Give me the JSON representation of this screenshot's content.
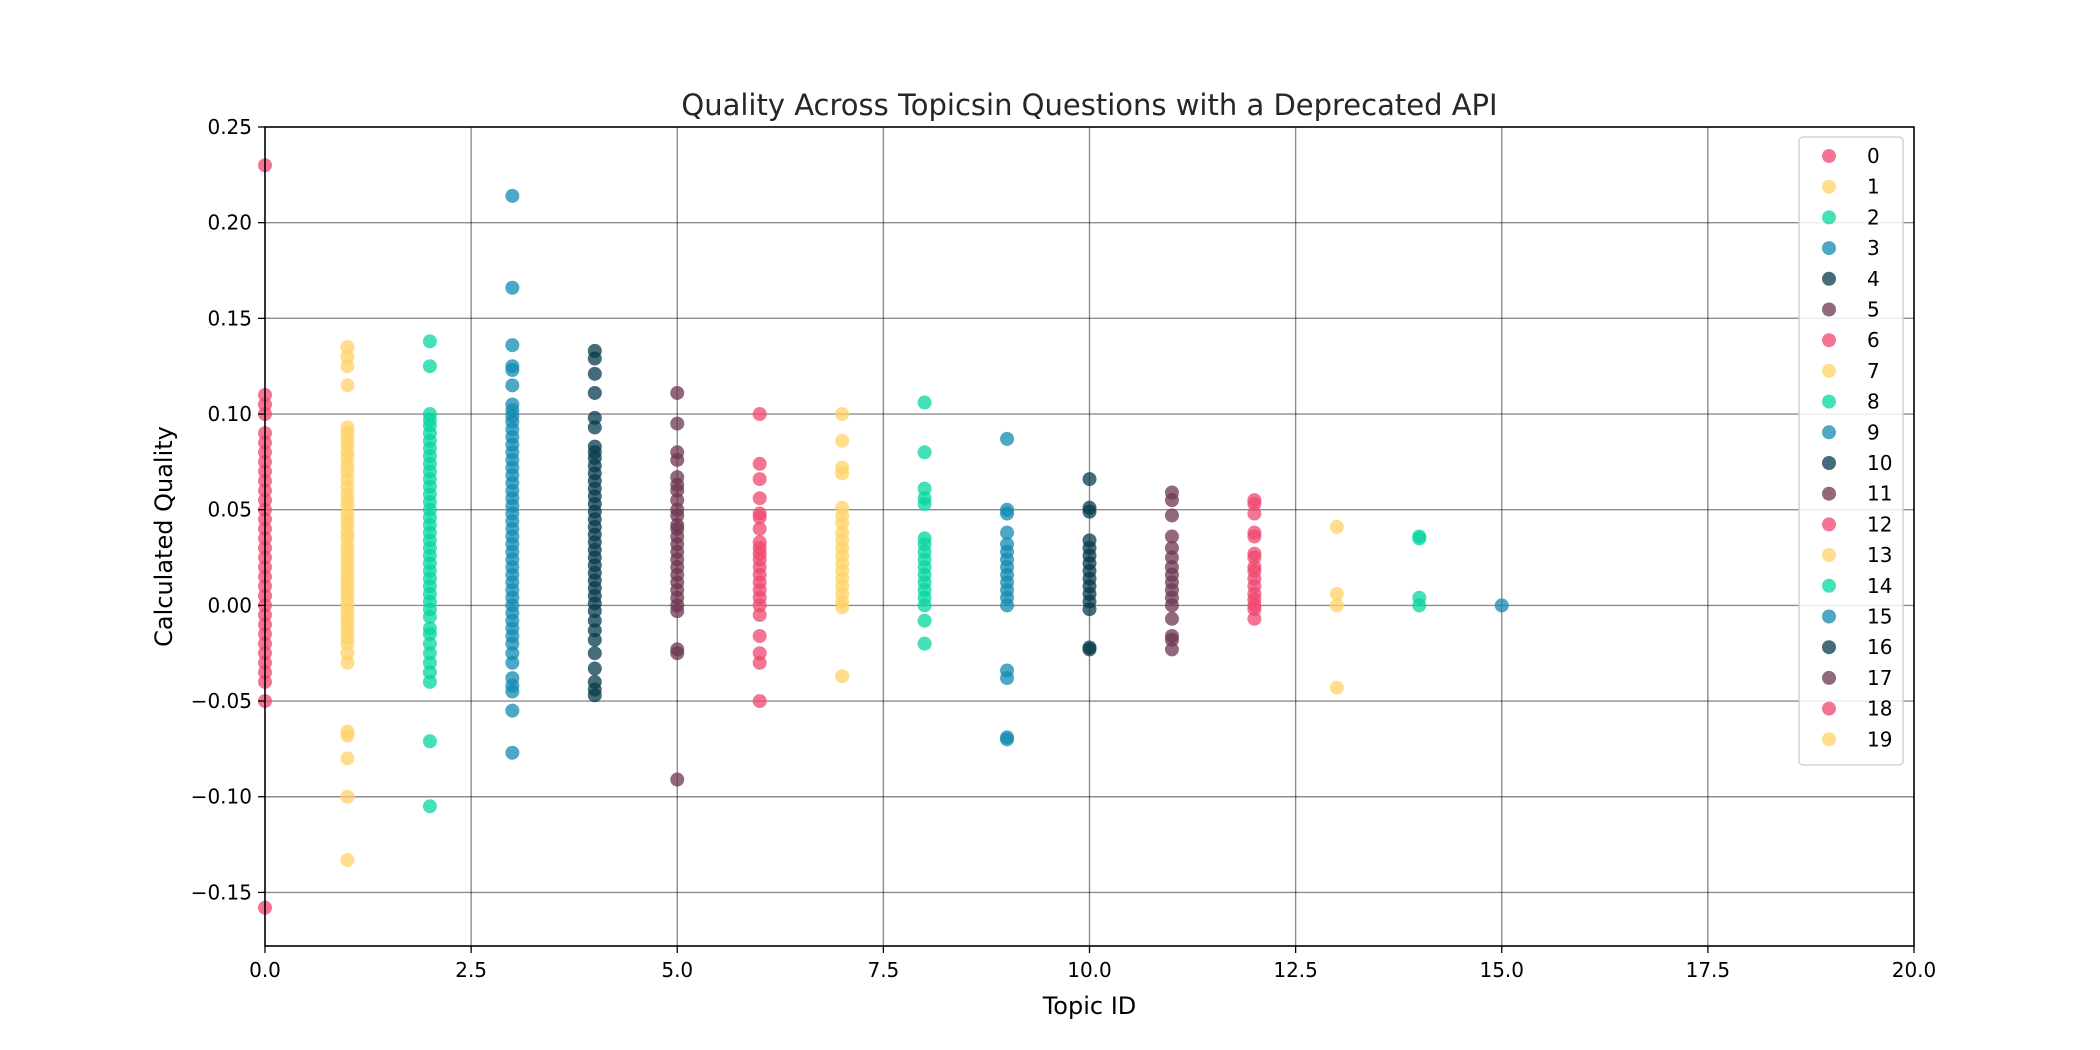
{
  "chart_data": {
    "type": "scatter",
    "title": "Quality Across Topicsin Questions with a Deprecated API",
    "xlabel": "Topic ID",
    "ylabel": "Calculated Quality",
    "xlim": [
      0,
      20
    ],
    "ylim": [
      -0.178,
      0.25
    ],
    "xticks": [
      0,
      2.5,
      5,
      7.5,
      10,
      12.5,
      15,
      17.5,
      20
    ],
    "xtick_labels": [
      "0.0",
      "2.5",
      "5.0",
      "7.5",
      "10.0",
      "12.5",
      "15.0",
      "17.5",
      "20.0"
    ],
    "yticks": [
      -0.15,
      -0.1,
      -0.05,
      0,
      0.05,
      0.1,
      0.15,
      0.2,
      0.25
    ],
    "ytick_labels": [
      "−0.15",
      "−0.10",
      "−0.05",
      "0.00",
      "0.05",
      "0.10",
      "0.15",
      "0.20",
      "0.25"
    ],
    "grid": true,
    "legend_position": "top-right",
    "colors": [
      "#ef476f",
      "#ffd166",
      "#06d6a0",
      "#118ab2",
      "#073b4c",
      "#6d3552"
    ],
    "series": [
      {
        "name": "0",
        "x": 0,
        "y": [
          0.23,
          0.11,
          0.105,
          0.1,
          0.09,
          0.085,
          0.08,
          0.075,
          0.07,
          0.065,
          0.06,
          0.055,
          0.05,
          0.045,
          0.04,
          0.035,
          0.03,
          0.025,
          0.02,
          0.015,
          0.01,
          0.005,
          0.0,
          -0.005,
          -0.01,
          -0.015,
          -0.02,
          -0.025,
          -0.03,
          -0.035,
          -0.04,
          -0.05,
          -0.158
        ]
      },
      {
        "name": "1",
        "x": 1,
        "y": [
          0.135,
          0.13,
          0.125,
          0.115,
          0.093,
          0.09,
          0.087,
          0.084,
          0.08,
          0.077,
          0.073,
          0.07,
          0.066,
          0.062,
          0.058,
          0.055,
          0.052,
          0.048,
          0.045,
          0.042,
          0.038,
          0.035,
          0.031,
          0.028,
          0.025,
          0.022,
          0.019,
          0.016,
          0.013,
          0.01,
          0.007,
          0.004,
          0.001,
          -0.002,
          -0.005,
          -0.008,
          -0.011,
          -0.014,
          -0.017,
          -0.02,
          -0.025,
          -0.03,
          -0.066,
          -0.068,
          -0.08,
          -0.1,
          -0.133
        ]
      },
      {
        "name": "2",
        "x": 2,
        "y": [
          0.138,
          0.125,
          0.1,
          0.097,
          0.094,
          0.09,
          0.086,
          0.082,
          0.078,
          0.074,
          0.07,
          0.066,
          0.062,
          0.058,
          0.054,
          0.05,
          0.046,
          0.042,
          0.038,
          0.034,
          0.03,
          0.026,
          0.022,
          0.018,
          0.014,
          0.01,
          0.006,
          0.002,
          -0.002,
          -0.006,
          -0.012,
          -0.015,
          -0.02,
          -0.025,
          -0.03,
          -0.035,
          -0.04,
          -0.071,
          -0.105
        ]
      },
      {
        "name": "3",
        "x": 3,
        "y": [
          0.214,
          0.166,
          0.136,
          0.125,
          0.123,
          0.115,
          0.105,
          0.102,
          0.099,
          0.096,
          0.092,
          0.088,
          0.084,
          0.08,
          0.076,
          0.072,
          0.068,
          0.064,
          0.06,
          0.056,
          0.052,
          0.048,
          0.044,
          0.04,
          0.036,
          0.032,
          0.028,
          0.024,
          0.02,
          0.016,
          0.012,
          0.008,
          0.004,
          0.0,
          -0.004,
          -0.008,
          -0.012,
          -0.016,
          -0.02,
          -0.025,
          -0.03,
          -0.038,
          -0.042,
          -0.045,
          -0.055,
          -0.077
        ]
      },
      {
        "name": "4",
        "x": 4,
        "y": [
          0.133,
          0.129,
          0.121,
          0.111,
          0.098,
          0.093,
          0.083,
          0.08,
          0.077,
          0.073,
          0.069,
          0.065,
          0.061,
          0.057,
          0.053,
          0.049,
          0.045,
          0.041,
          0.037,
          0.033,
          0.029,
          0.025,
          0.021,
          0.017,
          0.013,
          0.009,
          0.005,
          0.001,
          -0.003,
          -0.008,
          -0.013,
          -0.018,
          -0.025,
          -0.033,
          -0.04,
          -0.044,
          -0.047
        ]
      },
      {
        "name": "5",
        "x": 5,
        "y": [
          0.111,
          0.095,
          0.08,
          0.076,
          0.067,
          0.063,
          0.06,
          0.055,
          0.05,
          0.047,
          0.042,
          0.04,
          0.036,
          0.032,
          0.028,
          0.024,
          0.02,
          0.016,
          0.012,
          0.008,
          0.004,
          0.0,
          -0.003,
          -0.023,
          -0.025,
          -0.091
        ]
      },
      {
        "name": "6",
        "x": 6,
        "y": [
          0.1,
          0.074,
          0.066,
          0.056,
          0.048,
          0.046,
          0.04,
          0.033,
          0.03,
          0.027,
          0.024,
          0.02,
          0.016,
          0.012,
          0.008,
          0.004,
          0.0,
          -0.005,
          -0.016,
          -0.025,
          -0.03,
          -0.05
        ]
      },
      {
        "name": "7",
        "x": 7,
        "y": [
          0.1,
          0.086,
          0.072,
          0.069,
          0.051,
          0.047,
          0.043,
          0.038,
          0.034,
          0.03,
          0.026,
          0.022,
          0.018,
          0.014,
          0.01,
          0.006,
          0.002,
          -0.001,
          -0.037
        ]
      },
      {
        "name": "8",
        "x": 8,
        "y": [
          0.106,
          0.08,
          0.061,
          0.056,
          0.053,
          0.035,
          0.032,
          0.028,
          0.024,
          0.02,
          0.016,
          0.012,
          0.008,
          0.004,
          0.0,
          -0.008,
          -0.02
        ]
      },
      {
        "name": "9",
        "x": 9,
        "y": [
          0.087,
          0.05,
          0.048,
          0.038,
          0.032,
          0.028,
          0.024,
          0.02,
          0.016,
          0.012,
          0.008,
          0.004,
          0.0,
          -0.034,
          -0.038,
          -0.069,
          -0.07
        ]
      },
      {
        "name": "10",
        "x": 10,
        "y": [
          0.066,
          0.051,
          0.049,
          0.034,
          0.03,
          0.026,
          0.022,
          0.018,
          0.014,
          0.01,
          0.006,
          0.002,
          -0.002,
          -0.022,
          -0.023
        ]
      },
      {
        "name": "11",
        "x": 11,
        "y": [
          0.059,
          0.055,
          0.047,
          0.036,
          0.03,
          0.025,
          0.02,
          0.016,
          0.012,
          0.008,
          0.004,
          0.0,
          -0.007,
          -0.016,
          -0.018,
          -0.023
        ]
      },
      {
        "name": "12",
        "x": 12,
        "y": [
          0.055,
          0.053,
          0.048,
          0.038,
          0.036,
          0.027,
          0.025,
          0.02,
          0.018,
          0.014,
          0.01,
          0.006,
          0.003,
          0.0,
          -0.002,
          -0.007
        ]
      },
      {
        "name": "13",
        "x": 13,
        "y": [
          0.041,
          0.006,
          0.0,
          -0.043
        ]
      },
      {
        "name": "14",
        "x": 14,
        "y": [
          0.036,
          0.035,
          0.004,
          0.0
        ]
      },
      {
        "name": "15",
        "x": 15,
        "y": [
          0.0
        ]
      },
      {
        "name": "16",
        "x": 16,
        "y": []
      },
      {
        "name": "17",
        "x": 17,
        "y": []
      },
      {
        "name": "18",
        "x": 18,
        "y": []
      },
      {
        "name": "19",
        "x": 19,
        "y": []
      }
    ]
  }
}
